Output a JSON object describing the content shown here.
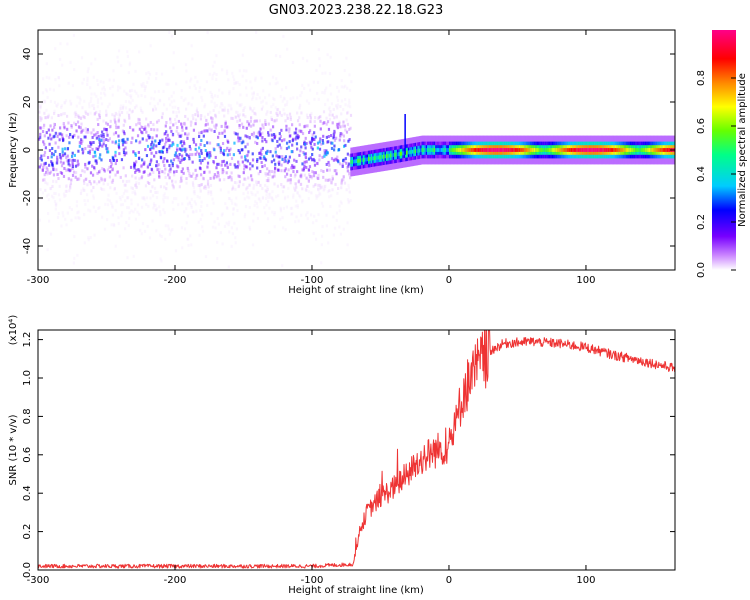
{
  "title": "GN03.2023.238.22.18.G23",
  "chart_data": [
    {
      "type": "heatmap",
      "title": "GN03.2023.238.22.18.G23",
      "xlabel": "Height of straight line (km)",
      "ylabel": "Frequency (Hz)",
      "xlim": [
        -300,
        165
      ],
      "ylim": [
        -50,
        50
      ],
      "xticks": [
        -300,
        -200,
        -100,
        0,
        100
      ],
      "yticks": [
        -40,
        -20,
        0,
        20,
        40
      ],
      "colorbar": {
        "label": "Normalized spectral amplitude",
        "range": [
          0,
          1
        ],
        "ticks": [
          0.0,
          0.2,
          0.4,
          0.6,
          0.8
        ],
        "colormap": [
          "#ffffff",
          "#cc88ff",
          "#7700ff",
          "#0000ff",
          "#00ccff",
          "#00ff88",
          "#66ff00",
          "#ffff00",
          "#ff8800",
          "#ff0000",
          "#ff0088"
        ]
      },
      "regions": [
        {
          "name": "noise",
          "x_range": [
            -300,
            -72
          ],
          "freq_spread_hz": 50,
          "core_amplitude": 0.3
        },
        {
          "name": "signal",
          "x_range": [
            -72,
            165
          ],
          "center_freq_hz": [
            [
              -72,
              -5
            ],
            [
              -40,
              -2
            ],
            [
              -20,
              0
            ],
            [
              165,
              0
            ]
          ],
          "peak_amplitude": 1.0
        }
      ]
    },
    {
      "type": "line",
      "xlabel": "Height of straight line (km)",
      "ylabel": "SNR (10 * v/v)",
      "yscale_label": "(x10⁴)",
      "xlim": [
        -300,
        165
      ],
      "ylim": [
        0,
        1.25
      ],
      "xticks": [
        -300,
        -200,
        -100,
        0,
        100
      ],
      "yticks": [
        0.0,
        0.2,
        0.4,
        0.6,
        0.8,
        1.0,
        1.2
      ],
      "color": "#ee3333",
      "series": [
        {
          "x": [
            -300,
            -250,
            -200,
            -150,
            -100,
            -70,
            -65,
            -60,
            -50,
            -40,
            -30,
            -20,
            -10,
            0,
            5,
            10,
            20,
            30,
            40,
            60,
            80,
            100,
            120,
            140,
            165
          ],
          "y": [
            0.02,
            0.02,
            0.02,
            0.02,
            0.02,
            0.03,
            0.2,
            0.3,
            0.38,
            0.43,
            0.5,
            0.58,
            0.62,
            0.65,
            0.75,
            0.92,
            1.05,
            1.14,
            1.18,
            1.19,
            1.18,
            1.16,
            1.12,
            1.09,
            1.05
          ]
        }
      ]
    }
  ]
}
